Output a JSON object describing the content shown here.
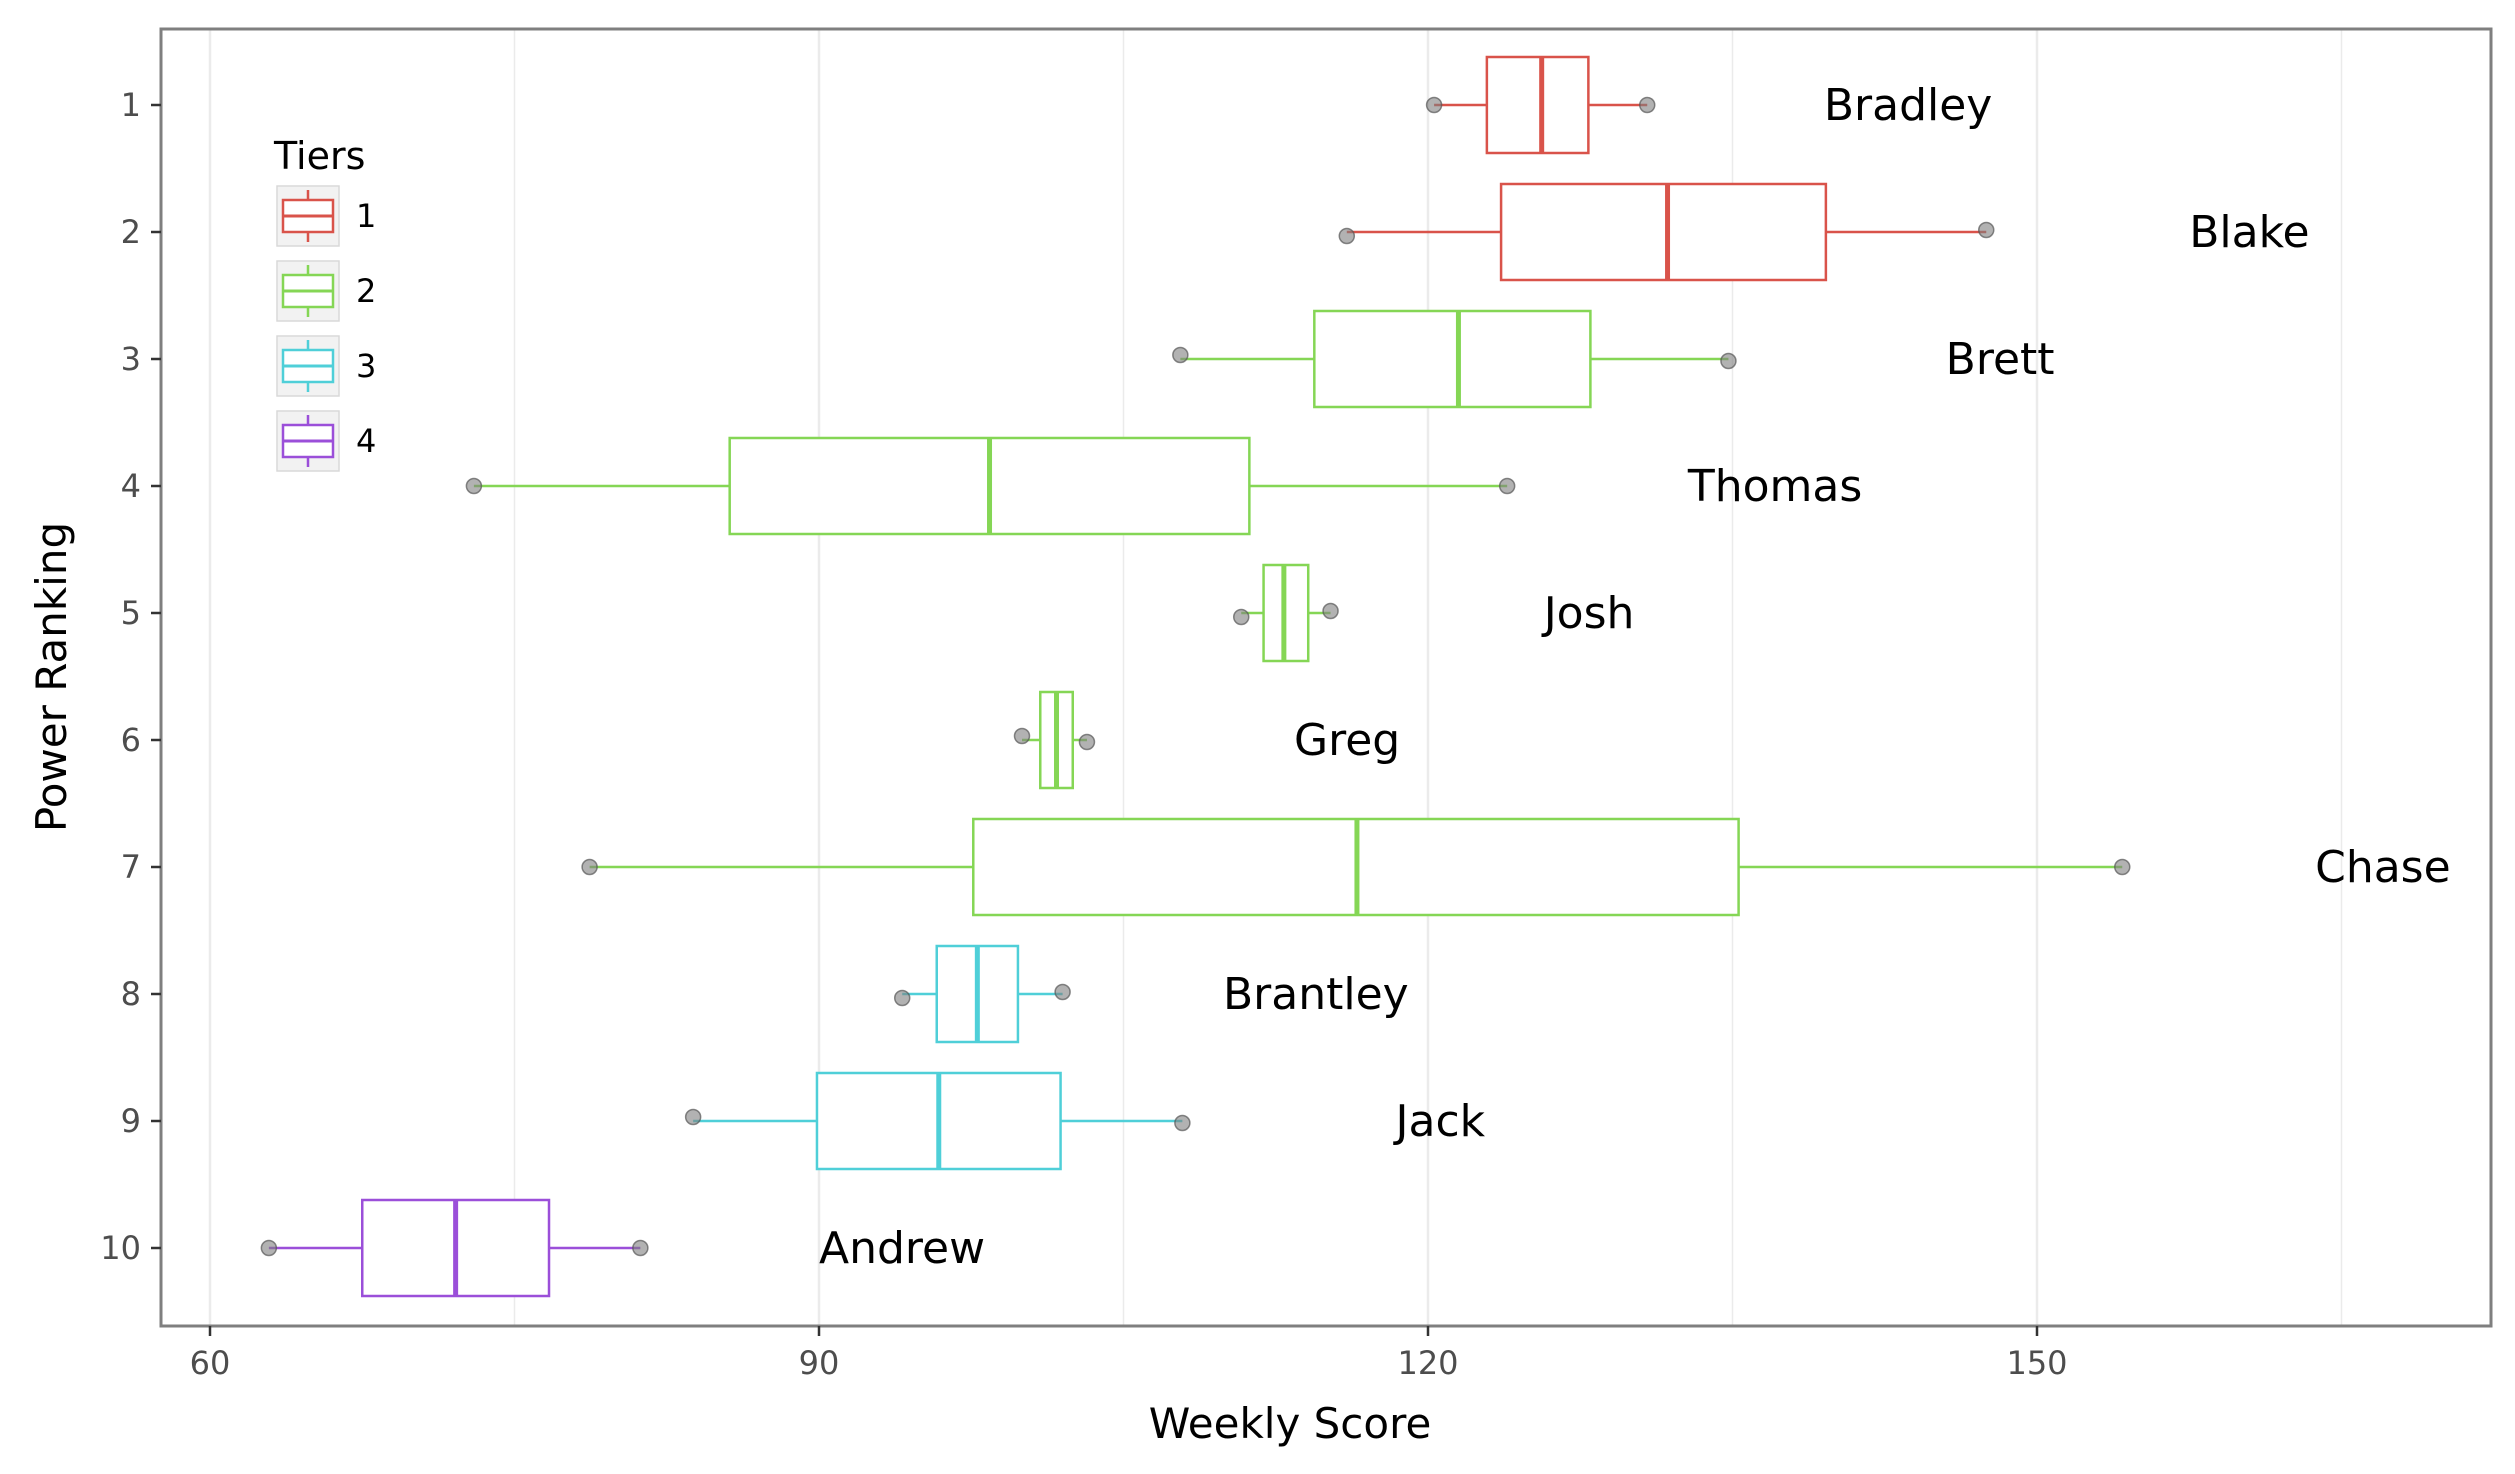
{
  "chart_data": {
    "type": "boxplot",
    "orientation": "horizontal",
    "xlabel": "Weekly Score",
    "ylabel": "Power Ranking",
    "xlim": [
      57.5,
      172.5
    ],
    "x_ticks": [
      60,
      90,
      120,
      150
    ],
    "y_ticks": [
      1,
      2,
      3,
      4,
      5,
      6,
      7,
      8,
      9,
      10
    ],
    "grid": true,
    "legend": {
      "title": "Tiers",
      "placement": "top-left inside",
      "entries": [
        {
          "label": "1",
          "color": "#d9534a"
        },
        {
          "label": "2",
          "color": "#85d655"
        },
        {
          "label": "3",
          "color": "#4fcfd8"
        },
        {
          "label": "4",
          "color": "#9b4fd9"
        }
      ]
    },
    "series": [
      {
        "rank": 1,
        "name": "Bradley",
        "tier": "1",
        "whisker_low": 120.3,
        "q1": 122.9,
        "median": 125.6,
        "q3": 127.9,
        "whisker_high": 130.8,
        "outliers": [
          120.3,
          130.8
        ],
        "label_x": 139.5
      },
      {
        "rank": 2,
        "name": "Blake",
        "tier": "1",
        "whisker_low": 116.0,
        "q1": 123.6,
        "median": 131.8,
        "q3": 139.6,
        "whisker_high": 147.5,
        "outliers": [
          116.0,
          147.5
        ],
        "label_x": 157.5
      },
      {
        "rank": 3,
        "name": "Brett",
        "tier": "2",
        "whisker_low": 107.8,
        "q1": 114.4,
        "median": 121.5,
        "q3": 128.0,
        "whisker_high": 134.8,
        "outliers": [
          107.8,
          134.8
        ],
        "label_x": 145.5
      },
      {
        "rank": 4,
        "name": "Thomas",
        "tier": "2",
        "whisker_low": 73.0,
        "q1": 85.6,
        "median": 98.4,
        "q3": 111.2,
        "whisker_high": 123.9,
        "outliers": [
          73.0,
          123.9
        ],
        "label_x": 132.8
      },
      {
        "rank": 5,
        "name": "Josh",
        "tier": "2",
        "whisker_low": 110.8,
        "q1": 111.9,
        "median": 112.9,
        "q3": 114.1,
        "whisker_high": 115.2,
        "outliers": [
          110.8,
          115.2
        ],
        "label_x": 125.7
      },
      {
        "rank": 6,
        "name": "Greg",
        "tier": "2",
        "whisker_low": 100.0,
        "q1": 100.9,
        "median": 101.7,
        "q3": 102.5,
        "whisker_high": 103.2,
        "outliers": [
          100.0,
          103.2
        ],
        "label_x": 113.4
      },
      {
        "rank": 7,
        "name": "Chase",
        "tier": "2",
        "whisker_low": 78.7,
        "q1": 97.6,
        "median": 116.5,
        "q3": 135.3,
        "whisker_high": 154.2,
        "outliers": [
          78.7,
          154.2
        ],
        "label_x": 163.7
      },
      {
        "rank": 8,
        "name": "Brantley",
        "tier": "3",
        "whisker_low": 94.1,
        "q1": 95.8,
        "median": 97.8,
        "q3": 99.8,
        "whisker_high": 102.0,
        "outliers": [
          94.1,
          102.0
        ],
        "label_x": 109.9
      },
      {
        "rank": 9,
        "name": "Jack",
        "tier": "3",
        "whisker_low": 83.8,
        "q1": 89.9,
        "median": 95.9,
        "q3": 101.9,
        "whisker_high": 107.9,
        "outliers": [
          83.8,
          107.9
        ],
        "label_x": 118.4
      },
      {
        "rank": 10,
        "name": "Andrew",
        "tier": "4",
        "whisker_low": 62.9,
        "q1": 67.5,
        "median": 72.1,
        "q3": 76.7,
        "whisker_high": 81.2,
        "outliers": [
          62.9,
          81.2
        ],
        "label_x": 90.0
      }
    ]
  }
}
